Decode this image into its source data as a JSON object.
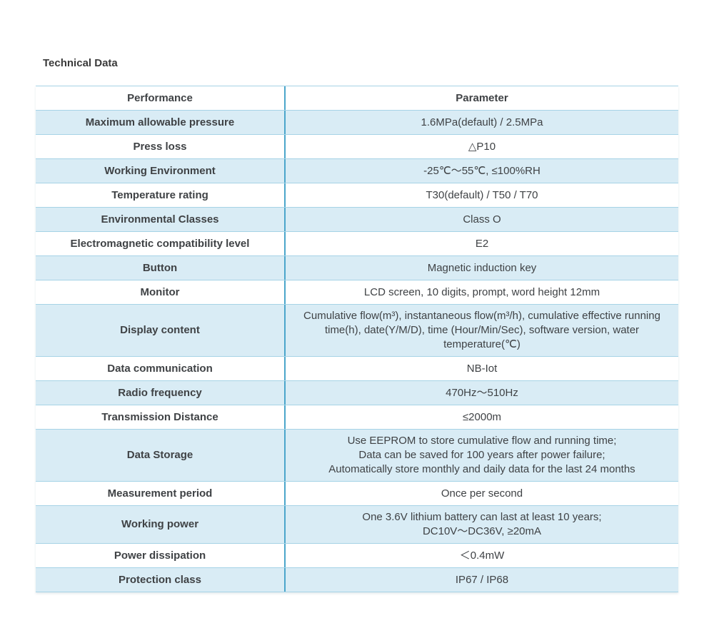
{
  "page": {
    "title": "Technical Data"
  },
  "colors": {
    "row_blue": "#d9ecf5",
    "grid_blue": "#a6d3e6",
    "divider_blue": "#4ba6cb",
    "text": "#3f4245"
  },
  "table": {
    "header": {
      "col1": "Performance",
      "col2": "Parameter"
    },
    "rows": [
      {
        "label": "Maximum allowable pressure",
        "value": "1.6MPa(default) / 2.5MPa"
      },
      {
        "label": "Press loss",
        "value": "△P10"
      },
      {
        "label": "Working Environment",
        "value": "-25℃～55℃, ≤100%RH"
      },
      {
        "label": "Temperature rating",
        "value": "T30(default) / T50 / T70"
      },
      {
        "label": "Environmental Classes",
        "value": "Class O"
      },
      {
        "label": "Electromagnetic compatibility level",
        "value": "E2"
      },
      {
        "label": "Button",
        "value": "Magnetic induction key"
      },
      {
        "label": "Monitor",
        "value": "LCD screen, 10 digits, prompt, word height 12mm"
      },
      {
        "label": "Display content",
        "value": "Cumulative flow(m³), instantaneous flow(m³/h), cumulative effective running time(h), date(Y/M/D), time (Hour/Min/Sec), software version, water temperature(℃)"
      },
      {
        "label": "Data communication",
        "value": "NB-Iot"
      },
      {
        "label": "Radio frequency",
        "value": "470Hz～510Hz"
      },
      {
        "label": "Transmission Distance",
        "value": "≤2000m"
      },
      {
        "label": "Data Storage",
        "value": "Use EEPROM to store cumulative flow and running time;\nData can be saved for 100 years after power failure;\nAutomatically store monthly and daily data for the last 24 months"
      },
      {
        "label": "Measurement period",
        "value": "Once per second"
      },
      {
        "label": "Working power",
        "value": "One 3.6V lithium battery can last at least 10 years;\nDC10V～DC36V, ≥20mA"
      },
      {
        "label": "Power dissipation",
        "value": "＜0.4mW"
      },
      {
        "label": "Protection class",
        "value": "IP67 / IP68"
      }
    ]
  }
}
